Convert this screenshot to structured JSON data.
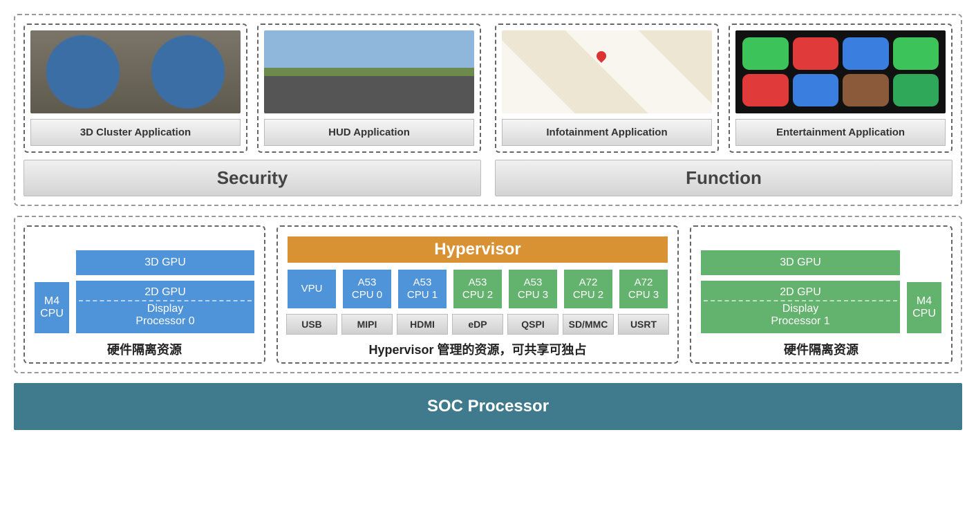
{
  "type": "block-architecture-diagram",
  "colors": {
    "blue": "#4f93d9",
    "green": "#63b26d",
    "orange": "#d99233",
    "teal": "#3f7b8c",
    "label_bg_top": "#f0f0f0",
    "label_bg_bottom": "#d4d4d4",
    "dash_border": "#666666"
  },
  "fontsizes": {
    "group_label": 26,
    "app_label": 15,
    "hyper": 24,
    "hw_title": 18,
    "soc": 24
  },
  "apps": {
    "security": {
      "label": "Security",
      "items": [
        {
          "label": "3D Cluster Application",
          "thumb": "cluster"
        },
        {
          "label": "HUD Application",
          "thumb": "hud"
        }
      ]
    },
    "function": {
      "label": "Function",
      "items": [
        {
          "label": "Infotainment Application",
          "thumb": "map"
        },
        {
          "label": "Entertainment Application",
          "thumb": "ent",
          "tiles": [
            "#3cc35a",
            "#e03a3a",
            "#3a7ee0",
            "#3cc35a",
            "#e03a3a",
            "#3a7ee0",
            "#8a5a3a",
            "#2fa85a"
          ]
        }
      ]
    }
  },
  "hw": {
    "left": {
      "title": "硬件隔离资源",
      "m4": "M4\nCPU",
      "gpu3d": "3D GPU",
      "gpu2d": "2D GPU",
      "dp": "Display\nProcessor 0",
      "color": "blue"
    },
    "mid": {
      "title": "Hypervisor 管理的资源，可共享可独占",
      "hyper": "Hypervisor",
      "cpus_blue": [
        "VPU",
        "A53\nCPU 0",
        "A53\nCPU 1"
      ],
      "cpus_green": [
        "A53\nCPU 2",
        "A53\nCPU 3",
        "A72\nCPU 2",
        "A72\nCPU 3"
      ],
      "io": [
        "USB",
        "MIPI",
        "HDMI",
        "eDP",
        "QSPI",
        "SD/MMC",
        "USRT"
      ]
    },
    "right": {
      "title": "硬件隔离资源",
      "m4": "M4\nCPU",
      "gpu3d": "3D GPU",
      "gpu2d": "2D GPU",
      "dp": "Display\nProcessor 1",
      "color": "green"
    }
  },
  "soc": "SOC Processor"
}
